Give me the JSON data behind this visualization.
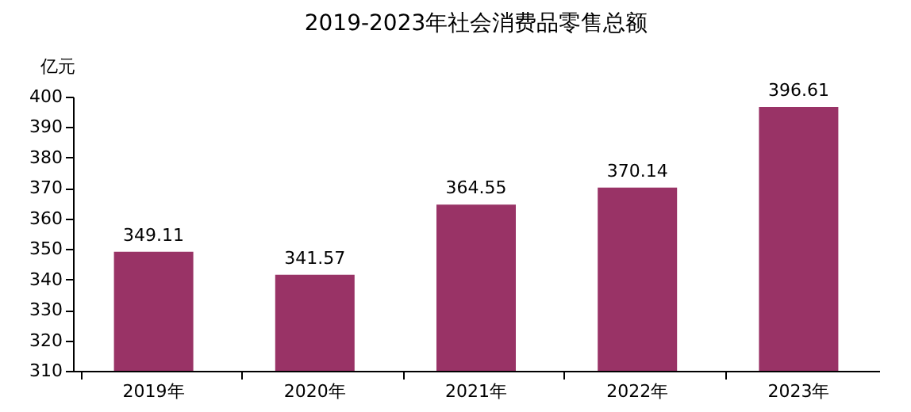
{
  "chart_data": {
    "type": "bar",
    "title": "2019-2023年社会消费品零售总额",
    "ylabel": "亿元",
    "categories": [
      "2019年",
      "2020年",
      "2021年",
      "2022年",
      "2023年"
    ],
    "values": [
      349.11,
      341.57,
      364.55,
      370.14,
      396.61
    ],
    "color": "#993366",
    "ylim": [
      310,
      400
    ],
    "yticks": [
      310,
      320,
      330,
      340,
      350,
      360,
      370,
      380,
      390,
      400
    ],
    "data_labels": true,
    "grid": false
  }
}
